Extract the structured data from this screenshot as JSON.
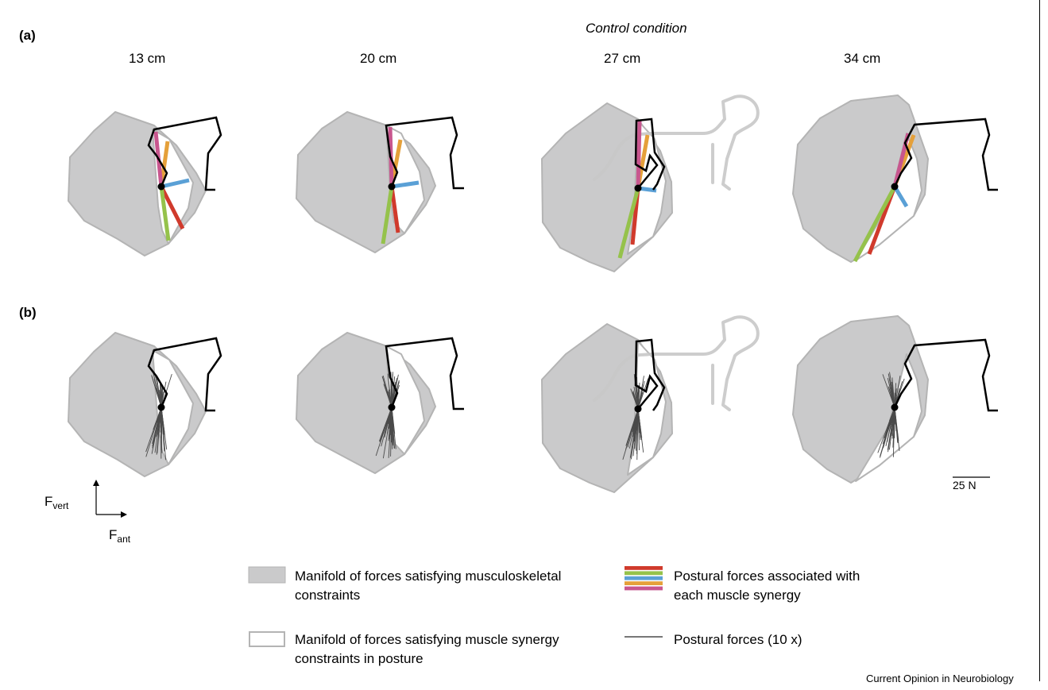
{
  "panels": {
    "a": {
      "label": "(a)"
    },
    "b": {
      "label": "(b)"
    }
  },
  "condition_title": "Control condition",
  "columns": [
    "13 cm",
    "20 cm",
    "27 cm",
    "34 cm"
  ],
  "axes": {
    "vertical": {
      "base": "F",
      "sub": "vert"
    },
    "horizontal": {
      "base": "F",
      "sub": "ant"
    }
  },
  "scale_bar": {
    "label": "25 N"
  },
  "legend": {
    "musculoskeletal": "Manifold of forces satisfying musculoskeletal constraints",
    "synergy": "Manifold of forces satisfying muscle synergy constraints in posture",
    "synergy_forces": "Postural forces associated with each muscle synergy",
    "postural_forces": "Postural forces (10 x)"
  },
  "colors": {
    "manifold_fill": "#cacacb",
    "manifold_edge": "#b4b4b4",
    "synergy_red": "#d03a2c",
    "synergy_green": "#95c24b",
    "synergy_blue": "#5aa0d6",
    "synergy_orange": "#e5a03a",
    "synergy_magenta": "#c8568e",
    "limb": "#000000",
    "cat_outline": "#c8c8c8"
  },
  "credit": "Current Opinion in Neurobiology"
}
